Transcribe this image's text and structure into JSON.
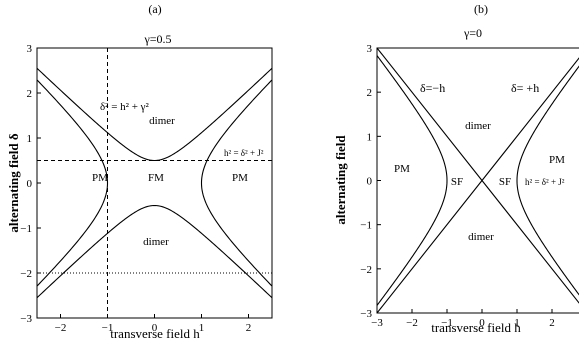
{
  "panels": [
    {
      "panel_label": "(a)",
      "title": "γ=0.5",
      "xlabel": "transverse field h",
      "ylabel": "alternating field δ",
      "xlim": [
        -2.5,
        2.5
      ],
      "ylim": [
        -3,
        3
      ],
      "xticks": [
        "−2",
        "−1",
        "0",
        "1",
        "2"
      ],
      "yticks": [
        "3",
        "2",
        "1",
        "0",
        "−1",
        "−2",
        "−3"
      ],
      "region_labels": [
        "PM",
        "FM",
        "PM",
        "dimer",
        "dimer"
      ],
      "curve_labels": [
        "δ² = h² + γ²",
        "h² = δ² + J²"
      ],
      "gamma": 0.5,
      "J": 1,
      "dashed_lines": {
        "horizontal_delta": 0.5,
        "vertical_h": -1
      },
      "dotted_line_delta": -2
    },
    {
      "panel_label": "(b)",
      "title": "γ=0",
      "xlabel": "transverse field h",
      "ylabel": "alternating field",
      "xlim": [
        -3,
        3
      ],
      "ylim": [
        -3,
        3
      ],
      "xticks": [
        "−3",
        "−2",
        "−1",
        "0",
        "1",
        "2"
      ],
      "yticks": [
        "3",
        "2",
        "1",
        "0",
        "−1",
        "−2",
        "−3"
      ],
      "region_labels": [
        "PM",
        "SF",
        "SF",
        "PM",
        "dimer",
        "dimer"
      ],
      "curve_labels": [
        "δ=−h",
        "δ= +h",
        "h² = δ² + J²"
      ],
      "J": 1
    }
  ]
}
